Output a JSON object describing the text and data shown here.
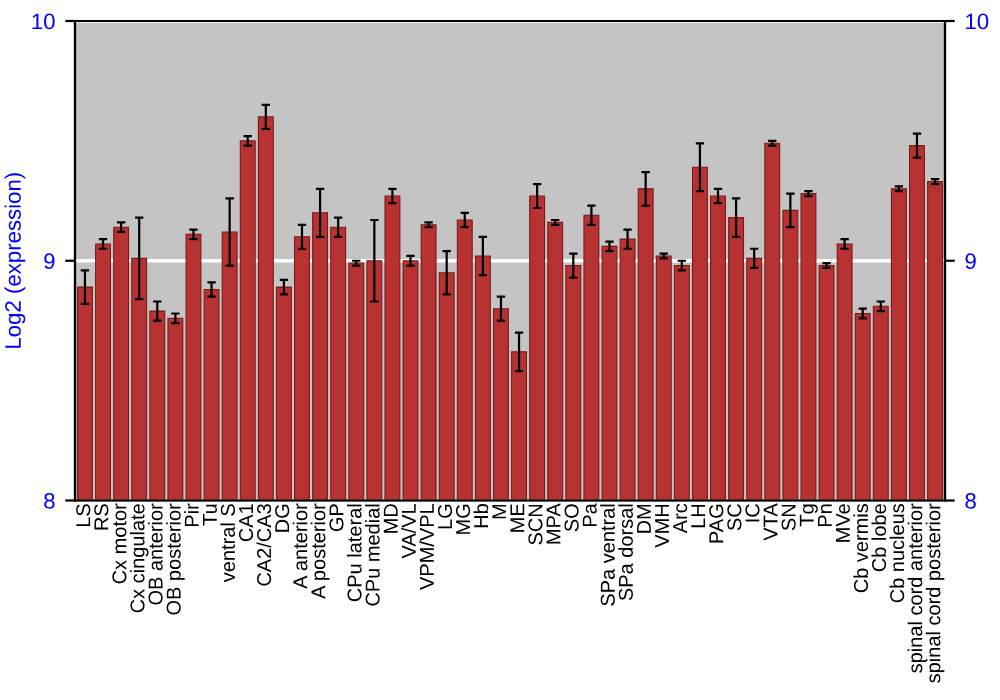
{
  "chart_data": {
    "type": "bar",
    "ylabel": "Log2 (expression)",
    "categories": [
      "LS",
      "RS",
      "Cx motor",
      "Cx cingulate",
      "OB anterior",
      "OB posterior",
      "Pir",
      "Tu",
      "ventral S",
      "CA1",
      "CA2/CA3",
      "DG",
      "A anterior",
      "A posterior",
      "GP",
      "CPu lateral",
      "CPu medial",
      "MD",
      "VA/VL",
      "VPM/VPL",
      "LG",
      "MG",
      "Hb",
      "M",
      "ME",
      "SCN",
      "MPA",
      "SO",
      "Pa",
      "SPa ventral",
      "SPa dorsal",
      "DM",
      "VMH",
      "Arc",
      "LH",
      "PAG",
      "SC",
      "IC",
      "VTA",
      "SN",
      "Tg",
      "Pn",
      "MVe",
      "Cb vermis",
      "Cb lobe",
      "Cb nucleus",
      "spinal cord anterior",
      "spinal cord posterior"
    ],
    "values": [
      8.89,
      9.07,
      9.14,
      9.01,
      8.79,
      8.76,
      9.11,
      8.88,
      9.12,
      9.5,
      9.6,
      8.89,
      9.1,
      9.2,
      9.14,
      8.99,
      9.0,
      9.27,
      9.0,
      9.15,
      8.95,
      9.17,
      9.02,
      8.8,
      8.62,
      9.27,
      9.16,
      8.98,
      9.19,
      9.06,
      9.09,
      9.3,
      9.02,
      8.98,
      9.39,
      9.27,
      9.18,
      9.01,
      9.49,
      9.21,
      9.28,
      8.98,
      9.07,
      8.78,
      8.81,
      9.3,
      9.48,
      9.33
    ],
    "errors": [
      0.07,
      0.02,
      0.02,
      0.17,
      0.04,
      0.02,
      0.02,
      0.03,
      0.14,
      0.02,
      0.05,
      0.03,
      0.05,
      0.1,
      0.04,
      0.01,
      0.17,
      0.03,
      0.02,
      0.01,
      0.09,
      0.03,
      0.08,
      0.05,
      0.08,
      0.05,
      0.01,
      0.05,
      0.04,
      0.02,
      0.04,
      0.07,
      0.01,
      0.02,
      0.1,
      0.03,
      0.08,
      0.04,
      0.01,
      0.07,
      0.01,
      0.01,
      0.02,
      0.02,
      0.02,
      0.01,
      0.05,
      0.01
    ],
    "color": "#b83232",
    "ylim": [
      8,
      10
    ],
    "yticks": [
      8,
      9,
      10
    ],
    "y2lim": [
      8,
      10
    ],
    "y2ticks": [
      8,
      9,
      10
    ],
    "grid": "y"
  }
}
